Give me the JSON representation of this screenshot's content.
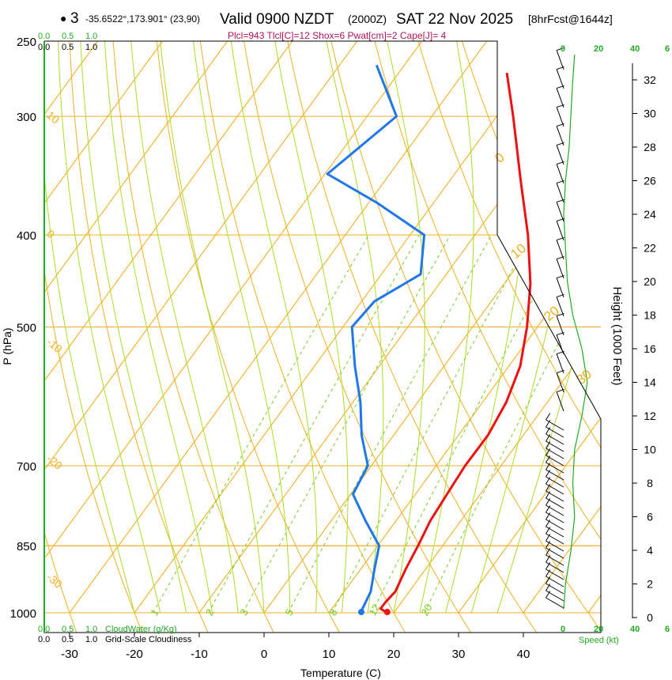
{
  "header": {
    "marker": "●",
    "point_id": "3",
    "coords": "-35.6522°,173.901° (23,90)",
    "valid": "Valid 0900 NZDT",
    "utc": "(2000Z)",
    "date": "SAT 22 Nov 2025",
    "forecast": "[8hrFcst@1644z]",
    "indices": "Plcl=943 Tlcl[C]=12 Shox=6 Pwat[cm]=2 Cape[J]= 4"
  },
  "colors": {
    "isotherm": "#f0b020",
    "dry_adiabat": "#88cc33",
    "moist_adiabat": "#aadd22",
    "mixing_ratio": "#77cc22",
    "temperature": "#ee1111",
    "dewpoint": "#1f77ee",
    "index_text": "#b0145a",
    "green_text": "#22aa22",
    "axis": "#000000"
  },
  "scales": {
    "cloudwater_top": [
      "0.0",
      "0.5",
      "1.0"
    ],
    "cloudiness_top": [
      "0.0",
      "0.5",
      "1.0"
    ],
    "cloudwater_bottom": [
      "0.0",
      "0.5",
      "1.0"
    ],
    "cloudwater_label": "CloudWater (g/Kg)",
    "cloudiness_bottom": [
      "0.0",
      "0.5",
      "1.0"
    ],
    "cloudiness_label": "Grid-Scale Cloudiness",
    "speed_ticks": [
      "0",
      "20",
      "40",
      "6"
    ],
    "speed_label": "Speed (kt)"
  },
  "chart_data": {
    "type": "skew-t",
    "title": "Valid 0900 NZDT (2000Z) SAT 22 Nov 2025 [8hrFcst@1644z]",
    "xlabel": "Temperature (C)",
    "ylabel": "P (hPa)",
    "y2label": "Height (1000 Feet)",
    "x_ticks": [
      -30,
      -20,
      -10,
      0,
      10,
      20,
      30,
      40
    ],
    "p_ticks": [
      250,
      300,
      400,
      500,
      700,
      850,
      1000
    ],
    "height_ticks": [
      0,
      2,
      4,
      6,
      8,
      10,
      12,
      14,
      16,
      18,
      20,
      22,
      24,
      26,
      28,
      30,
      32
    ],
    "isotherm_labels": [
      {
        "t": 10,
        "text": "10"
      },
      {
        "t": 0,
        "text": "0"
      },
      {
        "t": -10,
        "text": "-10"
      },
      {
        "t": -20,
        "text": "-20"
      },
      {
        "t": -30,
        "text": "-30"
      },
      {
        "t": 0,
        "text": "0",
        "upper": true
      },
      {
        "t": 10,
        "text": "10",
        "upper": true
      },
      {
        "t": 20,
        "text": "20",
        "upper": true
      },
      {
        "t": 30,
        "text": "30",
        "upper": true
      }
    ],
    "mixing_ratio_labels": [
      "1",
      "2",
      "3",
      "5",
      "8",
      "12",
      "20"
    ],
    "temperature": [
      {
        "p": 1000,
        "t": 19
      },
      {
        "p": 990,
        "t": 17.5
      },
      {
        "p": 975,
        "t": 17.5
      },
      {
        "p": 950,
        "t": 17.8
      },
      {
        "p": 900,
        "t": 16.8
      },
      {
        "p": 850,
        "t": 16
      },
      {
        "p": 800,
        "t": 15
      },
      {
        "p": 750,
        "t": 14.5
      },
      {
        "p": 700,
        "t": 14
      },
      {
        "p": 650,
        "t": 14
      },
      {
        "p": 600,
        "t": 13
      },
      {
        "p": 550,
        "t": 11
      },
      {
        "p": 500,
        "t": 7.5
      },
      {
        "p": 450,
        "t": 3
      },
      {
        "p": 400,
        "t": -3
      },
      {
        "p": 350,
        "t": -10.5
      },
      {
        "p": 300,
        "t": -19
      },
      {
        "p": 270,
        "t": -25
      }
    ],
    "dewpoint": [
      {
        "p": 1000,
        "t": 15
      },
      {
        "p": 990,
        "t": 14.7
      },
      {
        "p": 950,
        "t": 14
      },
      {
        "p": 900,
        "t": 12
      },
      {
        "p": 850,
        "t": 10
      },
      {
        "p": 800,
        "t": 5
      },
      {
        "p": 750,
        "t": 0
      },
      {
        "p": 700,
        "t": -1
      },
      {
        "p": 650,
        "t": -5.5
      },
      {
        "p": 600,
        "t": -9.5
      },
      {
        "p": 550,
        "t": -14.5
      },
      {
        "p": 500,
        "t": -19.5
      },
      {
        "p": 470,
        "t": -19
      },
      {
        "p": 440,
        "t": -15
      },
      {
        "p": 400,
        "t": -19
      },
      {
        "p": 370,
        "t": -30
      },
      {
        "p": 345,
        "t": -41
      },
      {
        "p": 300,
        "t": -37
      },
      {
        "p": 280,
        "t": -42
      },
      {
        "p": 265,
        "t": -46
      }
    ],
    "wind_profile": [
      {
        "h": 0.5,
        "speed": 0
      },
      {
        "h": 2,
        "speed": 1
      },
      {
        "h": 4,
        "speed": 4
      },
      {
        "h": 6,
        "speed": 6
      },
      {
        "h": 8,
        "speed": 5
      },
      {
        "h": 10,
        "speed": 6
      },
      {
        "h": 12,
        "speed": 10
      },
      {
        "h": 14,
        "speed": 13
      },
      {
        "h": 16,
        "speed": 10
      },
      {
        "h": 18,
        "speed": 5
      },
      {
        "h": 20,
        "speed": 2
      },
      {
        "h": 22,
        "speed": 1
      },
      {
        "h": 24,
        "speed": 0
      },
      {
        "h": 26,
        "speed": 1
      },
      {
        "h": 28,
        "speed": 3
      },
      {
        "h": 30,
        "speed": 4
      },
      {
        "h": 32,
        "speed": 5
      },
      {
        "h": 33.5,
        "speed": 6
      }
    ]
  }
}
